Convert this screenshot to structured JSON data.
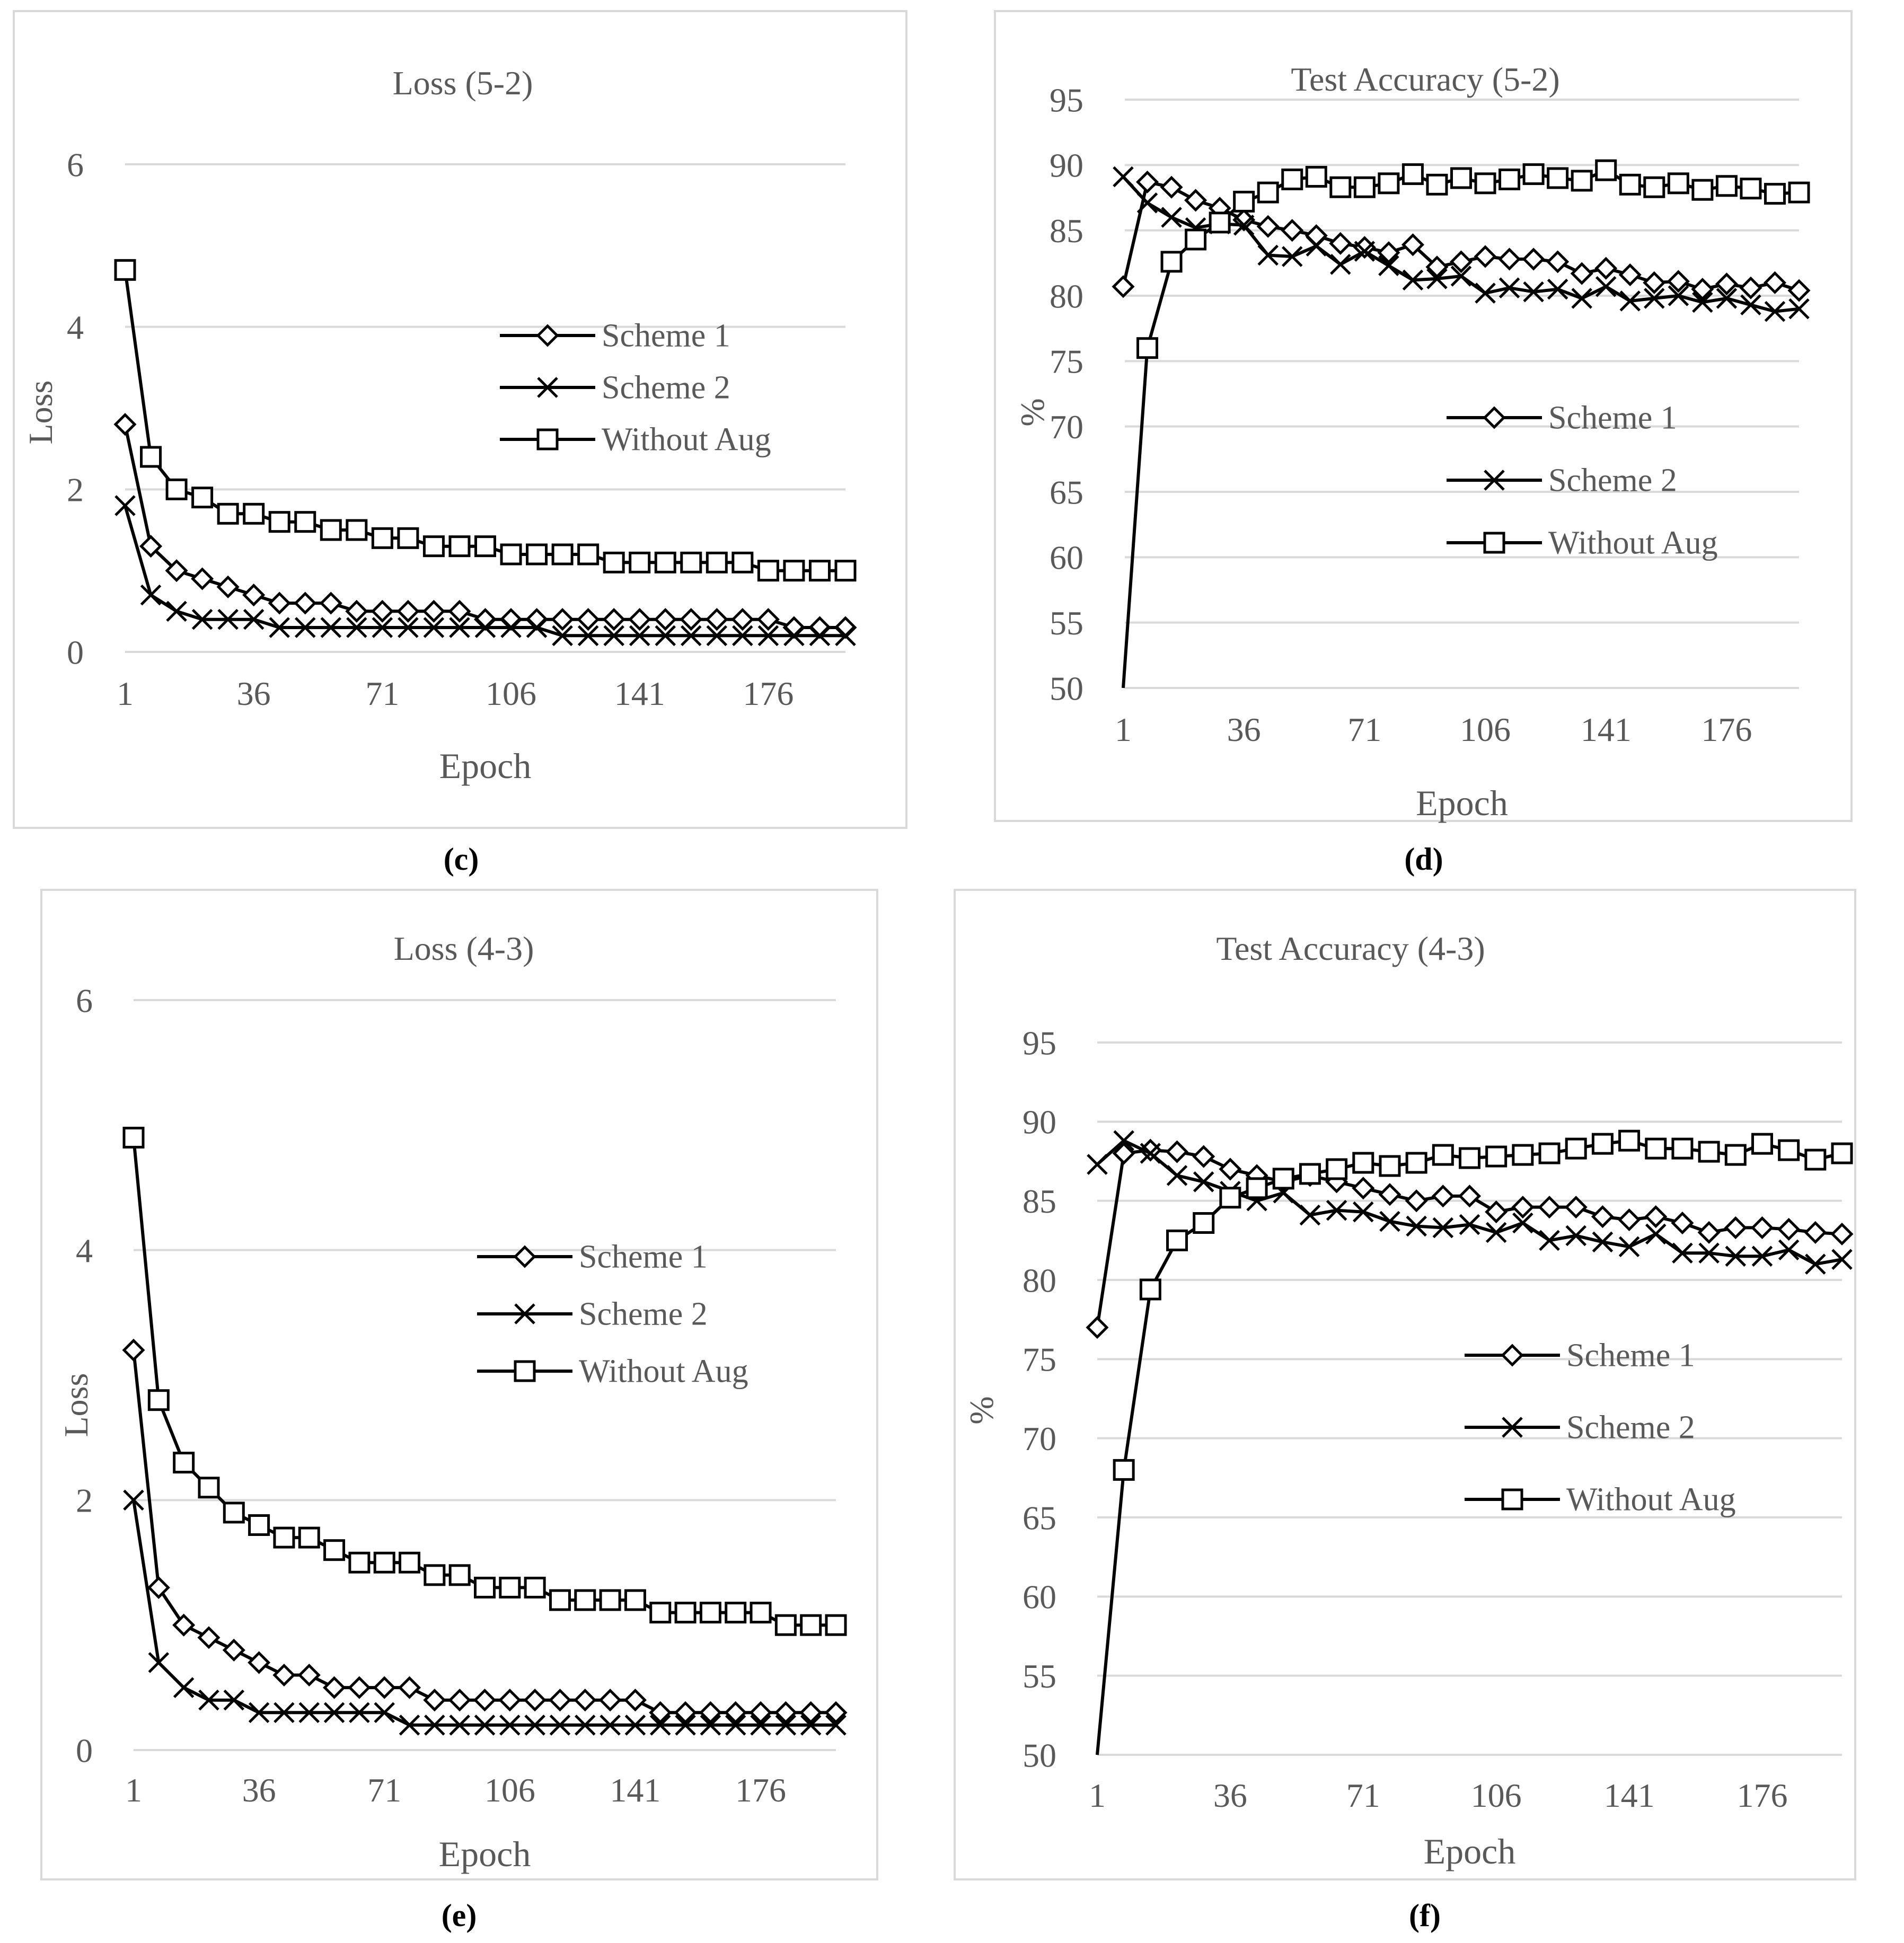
{
  "chart_data": [
    {
      "id": "c",
      "caption": "(c)",
      "type": "line",
      "title": "Loss (5-2)",
      "xlabel": "Epoch",
      "ylabel": "Loss",
      "x_ticks": [
        "1",
        "36",
        "71",
        "106",
        "141",
        "176"
      ],
      "y_ticks": [
        "0",
        "2",
        "4",
        "6"
      ],
      "ylim": [
        0,
        6
      ],
      "grid": true,
      "legend_position": "right",
      "x": [
        1,
        8,
        15,
        22,
        29,
        36,
        43,
        50,
        57,
        64,
        71,
        78,
        85,
        92,
        99,
        106,
        113,
        120,
        127,
        134,
        141,
        148,
        155,
        162,
        169,
        176,
        183,
        190,
        197
      ],
      "series": [
        {
          "name": "Scheme 1",
          "marker": "diamond",
          "values": [
            2.8,
            1.3,
            1.0,
            0.9,
            0.8,
            0.7,
            0.6,
            0.6,
            0.6,
            0.5,
            0.5,
            0.5,
            0.5,
            0.5,
            0.4,
            0.4,
            0.4,
            0.4,
            0.4,
            0.4,
            0.4,
            0.4,
            0.4,
            0.4,
            0.4,
            0.4,
            0.3,
            0.3,
            0.3
          ]
        },
        {
          "name": "Scheme 2",
          "marker": "x",
          "values": [
            1.8,
            0.7,
            0.5,
            0.4,
            0.4,
            0.4,
            0.3,
            0.3,
            0.3,
            0.3,
            0.3,
            0.3,
            0.3,
            0.3,
            0.3,
            0.3,
            0.3,
            0.2,
            0.2,
            0.2,
            0.2,
            0.2,
            0.2,
            0.2,
            0.2,
            0.2,
            0.2,
            0.2,
            0.2
          ]
        },
        {
          "name": "Without Aug",
          "marker": "square",
          "values": [
            4.7,
            2.4,
            2.0,
            1.9,
            1.7,
            1.7,
            1.6,
            1.6,
            1.5,
            1.5,
            1.4,
            1.4,
            1.3,
            1.3,
            1.3,
            1.2,
            1.2,
            1.2,
            1.2,
            1.1,
            1.1,
            1.1,
            1.1,
            1.1,
            1.1,
            1.0,
            1.0,
            1.0,
            1.0
          ]
        }
      ]
    },
    {
      "id": "d",
      "caption": "(d)",
      "type": "line",
      "title": "Test Accuracy (5-2)",
      "xlabel": "Epoch",
      "ylabel": "%",
      "x_ticks": [
        "1",
        "36",
        "71",
        "106",
        "141",
        "176"
      ],
      "y_ticks": [
        "50",
        "55",
        "60",
        "65",
        "70",
        "75",
        "80",
        "85",
        "90",
        "95"
      ],
      "ylim": [
        50,
        95
      ],
      "grid": true,
      "legend_position": "center-right",
      "x": [
        1,
        8,
        15,
        22,
        29,
        36,
        43,
        50,
        57,
        64,
        71,
        78,
        85,
        92,
        99,
        106,
        113,
        120,
        127,
        134,
        141,
        148,
        155,
        162,
        169,
        176,
        183,
        190,
        197
      ],
      "series": [
        {
          "name": "Scheme 1",
          "marker": "diamond",
          "values": [
            80.7,
            88.7,
            88.3,
            87.3,
            86.7,
            85.8,
            85.3,
            85.0,
            84.6,
            84.0,
            83.7,
            83.3,
            83.9,
            82.2,
            82.6,
            83.0,
            82.8,
            82.8,
            82.6,
            81.7,
            82.1,
            81.6,
            81.0,
            81.1,
            80.5,
            80.9,
            80.6,
            81.0,
            80.4
          ]
        },
        {
          "name": "Scheme 2",
          "marker": "x",
          "values": [
            89.1,
            87.1,
            86.0,
            85.2,
            85.5,
            85.4,
            83.1,
            83.0,
            83.8,
            82.4,
            83.4,
            82.3,
            81.2,
            81.3,
            81.5,
            80.2,
            80.6,
            80.3,
            80.5,
            79.8,
            80.7,
            79.6,
            79.8,
            80.0,
            79.5,
            79.8,
            79.3,
            78.8,
            79.0
          ]
        },
        {
          "name": "Without Aug",
          "marker": "square",
          "values": [
            50.0,
            76.0,
            82.6,
            84.3,
            85.6,
            87.2,
            87.9,
            88.9,
            89.1,
            88.3,
            88.3,
            88.6,
            89.3,
            88.5,
            89.0,
            88.6,
            88.9,
            89.3,
            89.0,
            88.8,
            89.6,
            88.5,
            88.3,
            88.6,
            88.1,
            88.4,
            88.2,
            87.8,
            87.9
          ]
        }
      ]
    },
    {
      "id": "e",
      "caption": "(e)",
      "type": "line",
      "title": "Loss (4-3)",
      "xlabel": "Epoch",
      "ylabel": "Loss",
      "x_ticks": [
        "1",
        "36",
        "71",
        "106",
        "141",
        "176"
      ],
      "y_ticks": [
        "0",
        "2",
        "4",
        "6"
      ],
      "ylim": [
        0,
        6
      ],
      "grid": true,
      "legend_position": "right",
      "x": [
        1,
        8,
        15,
        22,
        29,
        36,
        43,
        50,
        57,
        64,
        71,
        78,
        85,
        92,
        99,
        106,
        113,
        120,
        127,
        134,
        141,
        148,
        155,
        162,
        169,
        176,
        183,
        190,
        197
      ],
      "series": [
        {
          "name": "Scheme 1",
          "marker": "diamond",
          "values": [
            3.2,
            1.3,
            1.0,
            0.9,
            0.8,
            0.7,
            0.6,
            0.6,
            0.5,
            0.5,
            0.5,
            0.5,
            0.4,
            0.4,
            0.4,
            0.4,
            0.4,
            0.4,
            0.4,
            0.4,
            0.4,
            0.3,
            0.3,
            0.3,
            0.3,
            0.3,
            0.3,
            0.3,
            0.3
          ]
        },
        {
          "name": "Scheme 2",
          "marker": "x",
          "values": [
            2.0,
            0.7,
            0.5,
            0.4,
            0.4,
            0.3,
            0.3,
            0.3,
            0.3,
            0.3,
            0.3,
            0.2,
            0.2,
            0.2,
            0.2,
            0.2,
            0.2,
            0.2,
            0.2,
            0.2,
            0.2,
            0.2,
            0.2,
            0.2,
            0.2,
            0.2,
            0.2,
            0.2,
            0.2
          ]
        },
        {
          "name": "Without Aug",
          "marker": "square",
          "values": [
            4.9,
            2.8,
            2.3,
            2.1,
            1.9,
            1.8,
            1.7,
            1.7,
            1.6,
            1.5,
            1.5,
            1.5,
            1.4,
            1.4,
            1.3,
            1.3,
            1.3,
            1.2,
            1.2,
            1.2,
            1.2,
            1.1,
            1.1,
            1.1,
            1.1,
            1.1,
            1.0,
            1.0,
            1.0
          ]
        }
      ]
    },
    {
      "id": "f",
      "caption": "(f)",
      "type": "line",
      "title": "Test Accuracy (4-3)",
      "xlabel": "Epoch",
      "ylabel": "%",
      "x_ticks": [
        "1",
        "36",
        "71",
        "106",
        "141",
        "176"
      ],
      "y_ticks": [
        "50",
        "55",
        "60",
        "65",
        "70",
        "75",
        "80",
        "85",
        "90",
        "95"
      ],
      "ylim": [
        50,
        95
      ],
      "grid": true,
      "legend_position": "center-right",
      "x": [
        1,
        8,
        15,
        22,
        29,
        36,
        43,
        50,
        57,
        64,
        71,
        78,
        85,
        92,
        99,
        106,
        113,
        120,
        127,
        134,
        141,
        148,
        155,
        162,
        169,
        176,
        183,
        190,
        197
      ],
      "series": [
        {
          "name": "Scheme 1",
          "marker": "diamond",
          "values": [
            77.0,
            88.0,
            88.2,
            88.1,
            87.8,
            87.0,
            86.6,
            86.2,
            86.6,
            86.2,
            85.8,
            85.4,
            85.0,
            85.3,
            85.3,
            84.3,
            84.6,
            84.6,
            84.6,
            84.0,
            83.8,
            84.0,
            83.6,
            83.0,
            83.3,
            83.3,
            83.2,
            83.0,
            82.9
          ]
        },
        {
          "name": "Scheme 2",
          "marker": "x",
          "values": [
            87.3,
            88.8,
            88.0,
            86.6,
            86.2,
            85.6,
            85.0,
            85.5,
            84.1,
            84.4,
            84.3,
            83.7,
            83.4,
            83.3,
            83.5,
            83.0,
            83.6,
            82.5,
            82.8,
            82.4,
            82.1,
            82.9,
            81.7,
            81.7,
            81.5,
            81.5,
            81.9,
            81.0,
            81.3
          ]
        },
        {
          "name": "Without Aug",
          "marker": "square",
          "values": [
            50.0,
            68.0,
            79.4,
            82.5,
            83.6,
            85.2,
            85.8,
            86.4,
            86.7,
            87.0,
            87.4,
            87.2,
            87.4,
            87.9,
            87.7,
            87.8,
            87.9,
            88.0,
            88.3,
            88.6,
            88.8,
            88.3,
            88.3,
            88.1,
            87.9,
            88.6,
            88.2,
            87.6,
            88.0
          ]
        }
      ]
    }
  ]
}
